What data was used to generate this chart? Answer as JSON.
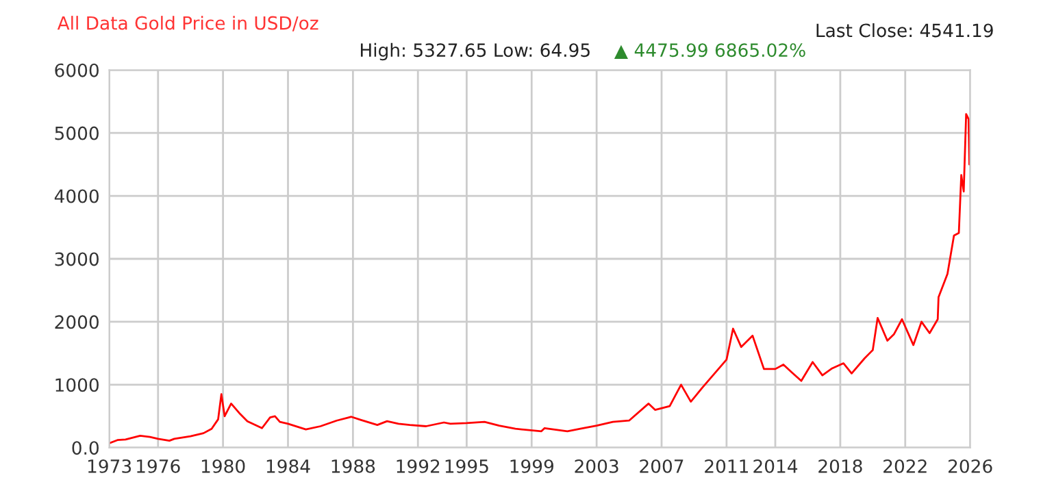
{
  "chart_data": {
    "type": "line",
    "title": "All Data Gold Price in USD/oz",
    "subtitle": "High: 5327.65 Low: 64.95",
    "annotations": [
      "▲ 4475.99 6865.02%",
      "Last Close: 4541.19"
    ],
    "series": [
      {
        "color": "#ff0000",
        "x": [
          1973.0,
          1973.5,
          1974.0,
          1974.9,
          1975.5,
          1976.0,
          1976.7,
          1977.0,
          1978.0,
          1978.8,
          1979.3,
          1979.7,
          1979.9,
          1980.1,
          1980.5,
          1981.0,
          1981.5,
          1982.4,
          1982.9,
          1983.2,
          1983.5,
          1984.0,
          1985.1,
          1986.0,
          1987.0,
          1987.9,
          1988.5,
          1989.5,
          1990.1,
          1990.8,
          1991.5,
          1992.5,
          1993.6,
          1994.0,
          1995.0,
          1996.1,
          1997.0,
          1998.0,
          1999.6,
          1999.8,
          2001.2,
          2002.0,
          2003.0,
          2004.0,
          2005.0,
          2006.2,
          2006.6,
          2007.5,
          2008.2,
          2008.8,
          2009.5,
          2010.0,
          2011.0,
          2011.4,
          2011.9,
          2012.6,
          2013.3,
          2014.0,
          2014.5,
          2015.0,
          2015.6,
          2016.3,
          2016.9,
          2017.5,
          2018.2,
          2018.7,
          2019.5,
          2020.0,
          2020.3,
          2020.9,
          2021.3,
          2021.8,
          2022.5,
          2023.0,
          2023.5,
          2024.0,
          2024.05,
          2024.6,
          2025.0,
          2025.3,
          2025.45,
          2025.6,
          2025.75,
          2025.9,
          2025.95,
          2026.0
        ],
        "values": [
          70,
          120,
          130,
          190,
          170,
          140,
          110,
          140,
          180,
          230,
          300,
          450,
          850,
          500,
          700,
          550,
          420,
          310,
          480,
          500,
          410,
          380,
          290,
          340,
          430,
          490,
          440,
          360,
          420,
          380,
          360,
          340,
          400,
          380,
          390,
          410,
          350,
          300,
          260,
          310,
          260,
          300,
          350,
          410,
          430,
          700,
          600,
          660,
          1000,
          730,
          950,
          1100,
          1400,
          1890,
          1600,
          1780,
          1250,
          1250,
          1320,
          1200,
          1060,
          1360,
          1150,
          1260,
          1340,
          1180,
          1420,
          1550,
          2060,
          1700,
          1800,
          2040,
          1630,
          2000,
          1820,
          2040,
          2390,
          2760,
          3370,
          3410,
          4330,
          4070,
          5300,
          5220,
          4500,
          4540
        ]
      }
    ],
    "xlim": [
      1973,
      2026
    ],
    "ylim": [
      0,
      6000
    ],
    "xticks": [
      1973,
      1976,
      1980,
      1984,
      1988,
      1992,
      1995,
      1999,
      2003,
      2007,
      2011,
      2014,
      2018,
      2022,
      2026
    ],
    "yticks": [
      {
        "value": 0,
        "label": "0.0"
      },
      1000,
      2000,
      3000,
      4000,
      5000,
      6000
    ],
    "grid": true,
    "legend": false
  }
}
